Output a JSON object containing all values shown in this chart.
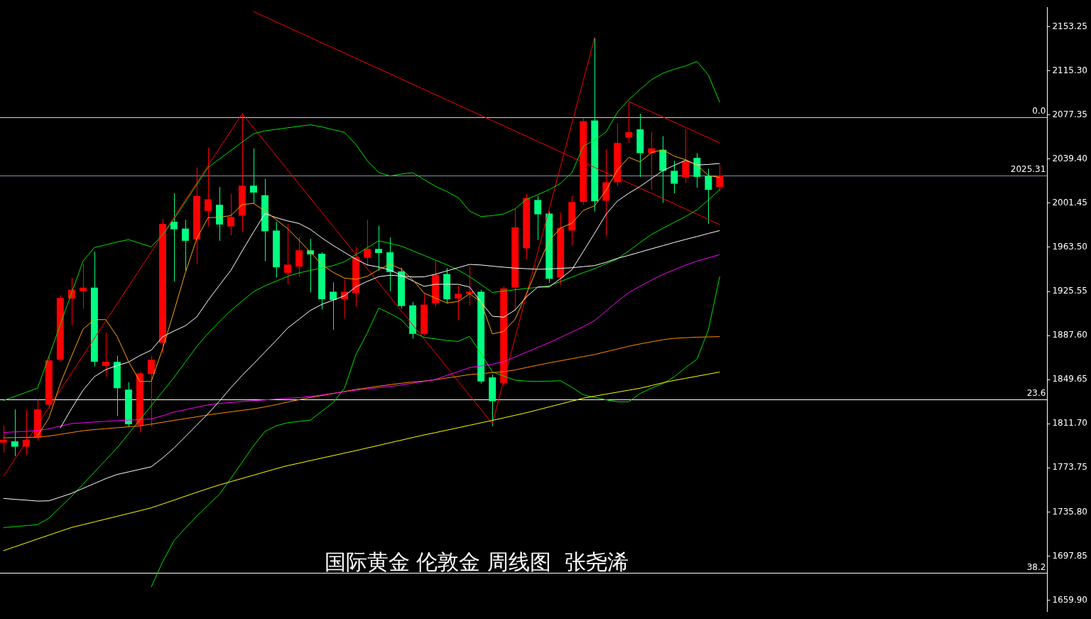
{
  "chart_data": {
    "type": "candlestick",
    "title": "国际黄金 伦敦金 周线图  张尧浠",
    "categories": [
      null,
      null,
      null,
      null,
      null,
      null,
      null,
      null,
      null,
      null,
      null,
      null,
      null,
      null,
      null,
      null,
      null,
      null,
      null,
      null,
      null,
      null,
      null,
      null,
      null,
      null,
      null,
      null,
      null,
      null,
      null,
      null,
      null,
      null,
      null,
      null,
      null,
      null,
      null,
      null,
      null,
      null,
      null,
      null,
      null,
      null,
      null,
      null,
      null,
      null,
      null,
      null,
      null,
      null,
      null,
      null,
      null,
      null,
      null,
      null,
      null,
      null,
      null,
      null
    ],
    "ohlc": [
      [
        1795.5,
        1810.1,
        1786.7,
        1797.8
      ],
      [
        1796.6,
        1824.1,
        1783.8,
        1792.0
      ],
      [
        1792.0,
        1823.5,
        1784.9,
        1797.8
      ],
      [
        1800.2,
        1832.3,
        1797.2,
        1824.1
      ],
      [
        1828.2,
        1869.7,
        1824.7,
        1866.2
      ],
      [
        1866.8,
        1922.3,
        1865.6,
        1920.0
      ],
      [
        1919.4,
        1937.5,
        1896.6,
        1927.0
      ],
      [
        1925.8,
        1949.2,
        1910.7,
        1928.8
      ],
      [
        1928.8,
        1959.8,
        1861.0,
        1865.0
      ],
      [
        1861.5,
        1890.2,
        1852.2,
        1865.0
      ],
      [
        1865.0,
        1870.3,
        1818.3,
        1842.3
      ],
      [
        1841.1,
        1847.5,
        1808.9,
        1811.3
      ],
      [
        1810.7,
        1856.3,
        1804.3,
        1855.1
      ],
      [
        1854.5,
        1870.3,
        1808.9,
        1866.8
      ],
      [
        1881.4,
        1987.8,
        1872.6,
        1983.7
      ],
      [
        1985.5,
        2010.0,
        1934.0,
        1979.0
      ],
      [
        1979.6,
        1987.2,
        1943.4,
        1969.1
      ],
      [
        1970.3,
        2032.2,
        1949.2,
        2007.7
      ],
      [
        1994.8,
        2049.2,
        1981.4,
        2004.8
      ],
      [
        2000.1,
        2015.3,
        1969.1,
        1983.1
      ],
      [
        1981.4,
        2009.5,
        1973.8,
        1989.6
      ],
      [
        1990.7,
        2077.3,
        1976.7,
        2016.5
      ],
      [
        2016.5,
        2048.6,
        2001.3,
        2010.6
      ],
      [
        2008.3,
        2022.3,
        1951.6,
        1977.3
      ],
      [
        1977.9,
        1985.5,
        1937.5,
        1946.3
      ],
      [
        1941.6,
        1983.7,
        1931.7,
        1948.6
      ],
      [
        1946.9,
        1972.6,
        1938.1,
        1960.9
      ],
      [
        1960.9,
        1970.9,
        1924.7,
        1957.4
      ],
      [
        1958.0,
        1959.2,
        1910.1,
        1918.8
      ],
      [
        1925.3,
        1933.4,
        1892.5,
        1918.2
      ],
      [
        1918.8,
        1935.2,
        1902.5,
        1925.3
      ],
      [
        1924.1,
        1963.9,
        1912.4,
        1955.1
      ],
      [
        1954.5,
        1987.2,
        1947.5,
        1962.1
      ],
      [
        1962.1,
        1982.0,
        1943.4,
        1958.6
      ],
      [
        1959.2,
        1972.0,
        1925.8,
        1942.2
      ],
      [
        1942.8,
        1945.7,
        1910.7,
        1913.0
      ],
      [
        1913.6,
        1916.5,
        1884.9,
        1889.0
      ],
      [
        1889.0,
        1924.1,
        1887.8,
        1914.2
      ],
      [
        1915.3,
        1952.1,
        1912.4,
        1939.9
      ],
      [
        1940.5,
        1945.7,
        1915.3,
        1918.8
      ],
      [
        1919.4,
        1930.5,
        1900.7,
        1923.5
      ],
      [
        1923.5,
        1947.5,
        1913.6,
        1925.3
      ],
      [
        1925.3,
        1927.0,
        1846.3,
        1848.1
      ],
      [
        1851.6,
        1853.9,
        1809.8,
        1831.1
      ],
      [
        1846.9,
        1929.9,
        1845.2,
        1928.2
      ],
      [
        1928.8,
        1997.1,
        1908.9,
        1980.8
      ],
      [
        1962.7,
        2009.5,
        1953.3,
        2005.9
      ],
      [
        2004.2,
        2007.7,
        1969.7,
        1991.9
      ],
      [
        1992.5,
        1994.2,
        1932.9,
        1936.4
      ],
      [
        1937.5,
        1993.6,
        1931.1,
        1980.2
      ],
      [
        1977.9,
        2007.7,
        1965.0,
        2002.4
      ],
      [
        2002.4,
        2074.9,
        2000.1,
        2072.0
      ],
      [
        2072.6,
        2143.9,
        1994.2,
        2003.0
      ],
      [
        2003.6,
        2048.0,
        1972.6,
        2019.4
      ],
      [
        2019.4,
        2070.2,
        2015.9,
        2053.3
      ],
      [
        2057.9,
        2088.9,
        2053.3,
        2062.6
      ],
      [
        2065.0,
        2078.4,
        2024.1,
        2044.5
      ],
      [
        2044.5,
        2062.6,
        2012.9,
        2048.6
      ],
      [
        2047.4,
        2059.1,
        2001.9,
        2029.3
      ],
      [
        2029.3,
        2038.1,
        2010.0,
        2018.2
      ],
      [
        2023.5,
        2065.6,
        2018.8,
        2037.5
      ],
      [
        2040.4,
        2044.5,
        2014.7,
        2024.1
      ],
      [
        2024.6,
        2031.1,
        1983.7,
        2012.9
      ],
      [
        2015.3,
        2034.6,
        2011.8,
        2025.31
      ]
    ],
    "colors": [
      "#ff0000",
      "#00ff80",
      "#ff0000",
      "#ff0000",
      "#ff0000",
      "#ff0000",
      "#ff0000",
      "#ff0000",
      "#00ff80",
      "#ff0000",
      "#00ff80",
      "#00ff80",
      "#ff0000",
      "#ff0000",
      "#ff0000",
      "#00ff80",
      "#00ff80",
      "#ff0000",
      "#ff0000",
      "#00ff80",
      "#ff0000",
      "#ff0000",
      "#00ff80",
      "#00ff80",
      "#00ff80",
      "#ff0000",
      "#ff0000",
      "#00ff80",
      "#00ff80",
      "#00ff80",
      "#ff0000",
      "#ff0000",
      "#ff0000",
      "#00ff80",
      "#00ff80",
      "#00ff80",
      "#00ff80",
      "#ff0000",
      "#ff0000",
      "#00ff80",
      "#ff0000",
      "#ff0000",
      "#00ff80",
      "#00ff80",
      "#ff0000",
      "#ff0000",
      "#ff0000",
      "#00ff80",
      "#00ff80",
      "#ff0000",
      "#ff0000",
      "#ff0000",
      "#00ff80",
      "#ff0000",
      "#ff0000",
      "#ff0000",
      "#00ff80",
      "#ff0000",
      "#00ff80",
      "#00ff80",
      "#ff0000",
      "#00ff80",
      "#00ff80",
      "#ff0000"
    ],
    "ylim": [
      1650,
      2170
    ],
    "yticks": [
      2153.25,
      {
        "value": 2115.3,
        "label": "2115.30"
      },
      2077.35,
      {
        "value": 2039.4,
        "label": "2039.40"
      },
      2001.45,
      {
        "value": 1963.5,
        "label": "1963.50"
      },
      1925.55,
      {
        "value": 1887.6,
        "label": "1887.60"
      },
      1849.65,
      {
        "value": 1811.7,
        "label": "1811.70"
      },
      1773.75,
      {
        "value": 1735.8,
        "label": "1735.80"
      },
      1697.85,
      {
        "value": 1659.9,
        "label": "1659.90"
      }
    ],
    "tick_labels": "y",
    "series": [
      {
        "type": "line",
        "color": "#ffa500",
        "values": [
          null,
          null,
          null,
          1801.3,
          1816.6,
          1846.1,
          1870.0,
          1893.1,
          1901.3,
          1901.3,
          1886.8,
          1865.3,
          1848.1,
          1848.1,
          1876.2,
          1908.4,
          1941.7,
          1970.9,
          1989.0,
          1989.3,
          1990.8,
          2000.2,
          2001.3,
          1994.7,
          1987.2,
          1979.5,
          1969.6,
          1959.3,
          1948.5,
          1942.0,
          1937.0,
          1936.0,
          1938.5,
          1944.3,
          1948.9,
          1944.8,
          1935.5,
          1924.1,
          1919.8,
          1915.6,
          1916.9,
          1923.6,
          1916.5,
          1889.0,
          1891.2,
          1901.6,
          1923.5,
          1947.1,
          1969.2,
          1980.1,
          1984.3,
          1995.2,
          1999.3,
          2012.4,
          2030.0,
          2040.9,
          2036.9,
          2045.1,
          2047.3,
          2041.9,
          2038.8,
          2034.3,
          2025.2,
          2023.6
        ]
      },
      {
        "type": "line",
        "color": "#ffffff",
        "values": [
          null,
          null,
          null,
          null,
          null,
          1808.1,
          1824.9,
          1840.5,
          1852.2,
          1858.3,
          1861.8,
          1864.7,
          1870.4,
          1875.0,
          1886.5,
          1891.5,
          1896.0,
          1903.6,
          1917.8,
          1930.9,
          1943.6,
          1960.4,
          1976.7,
          1992.5,
          1989.0,
          1986.2,
          1984.0,
          1978.9,
          1971.6,
          1965.1,
          1959.1,
          1953.3,
          1948.4,
          1946.5,
          1944.0,
          1939.4,
          1934.6,
          1929.9,
          1931.7,
          1931.7,
          1931.7,
          1929.3,
          1916.3,
          1904.2,
          1903.4,
          1909.5,
          1920.9,
          1929.4,
          1929.4,
          1936.6,
          1944.3,
          1960.0,
          1975.7,
          1991.9,
          2003.3,
          2010.0,
          2015.9,
          2022.7,
          2029.5,
          2034.0,
          2038.4,
          2034.3,
          2034.8,
          2035.6
        ]
      },
      {
        "type": "line",
        "color": "#ffffff",
        "values": [
          1747.5,
          1746.7,
          1746.0,
          1745.2,
          1745.4,
          1748.6,
          1751.9,
          1756.1,
          1760.3,
          1764.5,
          1768.1,
          1770.3,
          1772.5,
          1774.7,
          1782.3,
          1790.8,
          1800.6,
          1810.5,
          1820.4,
          1831.2,
          1842.7,
          1853.3,
          1863.3,
          1873.4,
          1883.5,
          1894.1,
          1901.6,
          1909.2,
          1914.4,
          1918.0,
          1921.8,
          1929.5,
          1934.2,
          1938.2,
          1939.5,
          1938.8,
          1938.0,
          1938.1,
          1940.4,
          1943.2,
          1946.0,
          1948.8,
          1948.3,
          1947.3,
          1946.4,
          1945.6,
          1945.1,
          1944.6,
          1944.9,
          1945.4,
          1945.9,
          1946.9,
          1947.8,
          1950.6,
          1954.0,
          1956.6,
          1959.4,
          1962.2,
          1964.9,
          1967.7,
          1970.3,
          1972.8,
          1975.4,
          1977.9
        ]
      },
      {
        "type": "line",
        "color": "#ff00ff",
        "values": [
          1804.2,
          1804.7,
          1805.2,
          1805.8,
          1807.3,
          1809.7,
          1811.9,
          1812.5,
          1813.2,
          1813.8,
          1814.4,
          1814.8,
          1815.3,
          1815.8,
          1818.6,
          1821.8,
          1823.8,
          1825.9,
          1827.9,
          1829.2,
          1830.0,
          1830.8,
          1831.6,
          1832.2,
          1832.9,
          1833.6,
          1834.2,
          1835.2,
          1836.5,
          1837.9,
          1839.2,
          1840.6,
          1841.7,
          1842.8,
          1843.8,
          1845.1,
          1846.6,
          1848.1,
          1849.9,
          1853.3,
          1856.6,
          1860.0,
          1861.4,
          1862.9,
          1865.2,
          1869.2,
          1873.3,
          1877.4,
          1881.5,
          1886.0,
          1890.6,
          1895.2,
          1900.5,
          1908.7,
          1916.9,
          1924.5,
          1930.0,
          1935.3,
          1940.2,
          1944.2,
          1948.3,
          1951.6,
          1954.4,
          1957.2
        ]
      },
      {
        "type": "line",
        "color": "#ff8c00",
        "values": [
          1799.6,
          1799.8,
          1800.0,
          1800.1,
          1801.1,
          1802.6,
          1804.2,
          1805.7,
          1806.7,
          1807.5,
          1808.3,
          1809.1,
          1809.9,
          1811.4,
          1813.0,
          1814.6,
          1816.1,
          1817.7,
          1819.3,
          1820.7,
          1822.0,
          1823.2,
          1824.5,
          1826.2,
          1828.2,
          1830.4,
          1832.4,
          1834.3,
          1836.0,
          1837.7,
          1839.5,
          1841.2,
          1842.6,
          1844.0,
          1845.3,
          1846.6,
          1847.6,
          1848.5,
          1849.6,
          1851.1,
          1852.5,
          1854.0,
          1854.8,
          1855.7,
          1856.5,
          1858.0,
          1860.1,
          1862.1,
          1864.1,
          1865.9,
          1867.7,
          1869.5,
          1871.3,
          1873.7,
          1876.0,
          1878.4,
          1880.4,
          1882.2,
          1884.0,
          1885.2,
          1885.7,
          1886.2,
          1886.4,
          1886.7
        ]
      },
      {
        "type": "line",
        "color": "#ffff00",
        "values": [
          1702.5,
          1705.9,
          1709.2,
          1712.6,
          1715.9,
          1719.3,
          1722.5,
          1724.9,
          1727.3,
          1729.7,
          1732.1,
          1734.5,
          1736.9,
          1739.4,
          1742.7,
          1746.0,
          1749.4,
          1752.7,
          1756.0,
          1759.1,
          1761.9,
          1764.7,
          1767.5,
          1770.3,
          1773.1,
          1775.7,
          1777.8,
          1780.0,
          1782.2,
          1784.3,
          1786.5,
          1788.6,
          1790.9,
          1793.1,
          1795.4,
          1797.6,
          1799.9,
          1802.1,
          1804.1,
          1806.2,
          1808.3,
          1810.4,
          1812.5,
          1814.6,
          1816.8,
          1819.0,
          1821.2,
          1823.7,
          1826.2,
          1828.7,
          1831.2,
          1833.7,
          1835.5,
          1837.2,
          1838.9,
          1840.6,
          1842.3,
          1844.6,
          1847.0,
          1849.0,
          1850.8,
          1852.6,
          1854.4,
          1856.2
        ]
      },
      {
        "type": "line",
        "color": "#00e000",
        "values": [
          1831.7,
          1835.2,
          1838.8,
          1842.3,
          1869.6,
          1896.9,
          1924.3,
          1951.6,
          1963.3,
          1965.7,
          1968.1,
          1970.1,
          1967.0,
          1963.9,
          1974.1,
          1987.8,
          2002.6,
          2017.4,
          2032.2,
          2039.5,
          2046.7,
          2054.0,
          2061.2,
          2063.7,
          2065.0,
          2066.3,
          2067.6,
          2068.9,
          2067.1,
          2064.7,
          2062.3,
          2051.9,
          2038.0,
          2027.9,
          2024.8,
          2026.5,
          2027.7,
          2021.8,
          2015.9,
          2011.5,
          2006.3,
          1994.6,
          1990.0,
          1990.7,
          1992.2,
          1996.6,
          2004.8,
          2008.8,
          2013.1,
          2018.5,
          2027.8,
          2050.4,
          2055.8,
          2062.6,
          2079.7,
          2090.6,
          2099.2,
          2107.7,
          2113.3,
          2116.7,
          2119.5,
          2123.4,
          2111.7,
          2088.2
        ]
      },
      {
        "type": "line",
        "color": "#00e000",
        "values": [
          1722.4,
          1723.2,
          1724.1,
          1724.9,
          1730.5,
          1739.9,
          1749.3,
          1759.7,
          1770.1,
          1780.5,
          1791.0,
          1803.1,
          1815.1,
          1827.2,
          1839.3,
          1851.5,
          1864.8,
          1878.1,
          1889.5,
          1899.6,
          1909.1,
          1917.3,
          1925.4,
          1930.3,
          1934.4,
          1938.5,
          1941.5,
          1943.6,
          1945.7,
          1947.8,
          1951.1,
          1957.1,
          1963.1,
          1969.1,
          1966.9,
          1964.5,
          1960.5,
          1956.5,
          1952.5,
          1948.5,
          1943.9,
          1938.2,
          1931.5,
          1924.7,
          1925.9,
          1927.0,
          1928.1,
          1929.1,
          1930.4,
          1934.1,
          1937.9,
          1941.7,
          1945.1,
          1949.3,
          1953.5,
          1960.5,
          1967.6,
          1974.6,
          1979.9,
          1985.0,
          1990.0,
          1995.7,
          2004.2,
          2013.2
        ]
      },
      {
        "type": "line",
        "color": "#00e000",
        "values": [
          null,
          null,
          null,
          null,
          null,
          null,
          null,
          null,
          null,
          null,
          null,
          null,
          null,
          1671.2,
          1692.9,
          1711.1,
          1721.8,
          1732.3,
          1741.7,
          1751.0,
          1764.7,
          1778.7,
          1792.8,
          1805.1,
          1810.0,
          1812.6,
          1813.7,
          1814.8,
          1822.4,
          1830.0,
          1842.4,
          1871.3,
          1889.7,
          1911.2,
          1906.6,
          1901.2,
          1890.4,
          1886.1,
          1884.8,
          1883.3,
          1882.5,
          1886.9,
          1872.2,
          1856.3,
          1852.7,
          1849.2,
          1848.4,
          1848.2,
          1848.4,
          1848.7,
          1843.1,
          1836.6,
          1834.4,
          1832.3,
          1830.6,
          1830.6,
          1837.8,
          1842.4,
          1846.2,
          1852.1,
          1860.1,
          1867.3,
          1892.5,
          1938.4
        ]
      },
      {
        "type": "line",
        "color": "#ff0000",
        "values": [
          1766.3,
          1781.2,
          1796.0,
          1810.9,
          1825.7,
          1840.6,
          1855.5,
          1870.3,
          1885.2,
          1900.1,
          1914.9,
          1929.8,
          1944.6,
          1959.5,
          1974.4,
          1989.2,
          2004.1,
          2018.9,
          2033.8,
          2048.7,
          2063.5,
          2078.4,
          2066.3,
          2054.2,
          2042.1,
          2030.0,
          2017.8,
          2005.7,
          1993.6,
          1981.5,
          1969.4,
          1957.3,
          1945.2,
          1933.0,
          1920.9,
          1908.8,
          1896.7,
          1884.6,
          1872.5,
          1860.4,
          1848.2,
          1836.1,
          1824.0,
          1811.9,
          1848.8,
          1885.7,
          1922.6,
          1959.5,
          1996.4,
          2033.2,
          2070.1,
          2107.0,
          2143.9,
          null,
          null,
          null,
          null,
          null,
          null,
          null,
          null,
          null,
          null,
          null
        ]
      },
      {
        "type": "line",
        "color": "#ff0000",
        "values": [
          null,
          null,
          null,
          null,
          null,
          null,
          null,
          null,
          null,
          null,
          null,
          null,
          null,
          null,
          null,
          null,
          null,
          null,
          null,
          null,
          null,
          null,
          2166.3,
          2161.8,
          2157.4,
          2152.9,
          2148.4,
          2144.0,
          2139.5,
          2135.0,
          2130.5,
          2126.1,
          2121.6,
          2117.1,
          2112.7,
          2108.2,
          2103.7,
          2099.3,
          2094.8,
          2090.3,
          2085.8,
          2081.4,
          2076.9,
          2072.4,
          2068.0,
          2063.5,
          2059.0,
          2054.6,
          2050.1,
          2045.6,
          2041.1,
          2036.7,
          2032.2,
          2027.7,
          2023.3,
          2018.8,
          2014.3,
          2009.9,
          2005.4,
          2000.9,
          1996.4,
          1992.0,
          1987.5,
          1983.0
        ]
      },
      {
        "type": "line",
        "color": "#ff0000",
        "values": [
          null,
          null,
          null,
          null,
          null,
          null,
          null,
          null,
          null,
          null,
          null,
          null,
          null,
          null,
          null,
          null,
          null,
          null,
          null,
          null,
          null,
          null,
          null,
          null,
          null,
          null,
          null,
          null,
          null,
          null,
          null,
          null,
          null,
          null,
          null,
          null,
          null,
          null,
          null,
          null,
          null,
          null,
          null,
          null,
          null,
          null,
          null,
          null,
          null,
          null,
          null,
          null,
          null,
          null,
          null,
          2088.9,
          2084.4,
          2080.0,
          2075.5,
          2071.1,
          2066.6,
          2062.2,
          2057.7,
          2053.3
        ]
      }
    ],
    "ref_lines": [
      {
        "axis": "y",
        "value": 2075.5,
        "color": "#d0d0d0"
      },
      {
        "axis": "y",
        "value": 2025.31,
        "label": "2025.31",
        "color": "#8894a8"
      },
      {
        "axis": "y",
        "value": 1832.9,
        "color": "#ffffff"
      },
      {
        "axis": "y",
        "value": 1683.2,
        "color": "#ffffff"
      }
    ],
    "annotations": [
      {
        "text": "0.0",
        "y": 2075.5
      },
      {
        "text": "23.6",
        "y": 1832.9
      },
      {
        "text": "38.2",
        "y": 1683.2
      }
    ]
  }
}
